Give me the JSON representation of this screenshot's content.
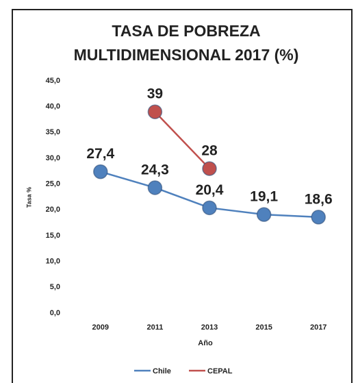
{
  "chart_data": {
    "type": "line",
    "title": [
      "TASA DE POBREZA",
      "MULTIDIMENSIONAL 2017 (%)"
    ],
    "x_label": "Año",
    "y_label": "Tasa %",
    "categories": [
      "2009",
      "2011",
      "2013",
      "2015",
      "2017"
    ],
    "series": [
      {
        "name": "Chile",
        "color": "#4f81bd",
        "values": [
          27.4,
          24.3,
          20.4,
          19.1,
          18.6
        ],
        "value_labels": [
          "27,4",
          "24,3",
          "20,4",
          "19,1",
          "18,6"
        ]
      },
      {
        "name": "CEPAL",
        "color": "#c0504d",
        "values": [
          null,
          39,
          28,
          null,
          null
        ]
      }
    ],
    "ylim": [
      0,
      45
    ],
    "yticks": [
      {
        "value": 0,
        "label": "0,0"
      },
      {
        "value": 5,
        "label": "5,0"
      },
      {
        "value": 10,
        "label": "10,0"
      },
      {
        "value": 15,
        "label": "15,0"
      },
      {
        "value": 20,
        "label": "20,0"
      },
      {
        "value": 25,
        "label": "25,0"
      },
      {
        "value": 30,
        "label": "30,0"
      },
      {
        "value": 35,
        "label": "35,0"
      },
      {
        "value": 40,
        "label": "40,0"
      },
      {
        "value": 45,
        "label": "45,0"
      }
    ],
    "grid": false,
    "legend": "bottom"
  }
}
